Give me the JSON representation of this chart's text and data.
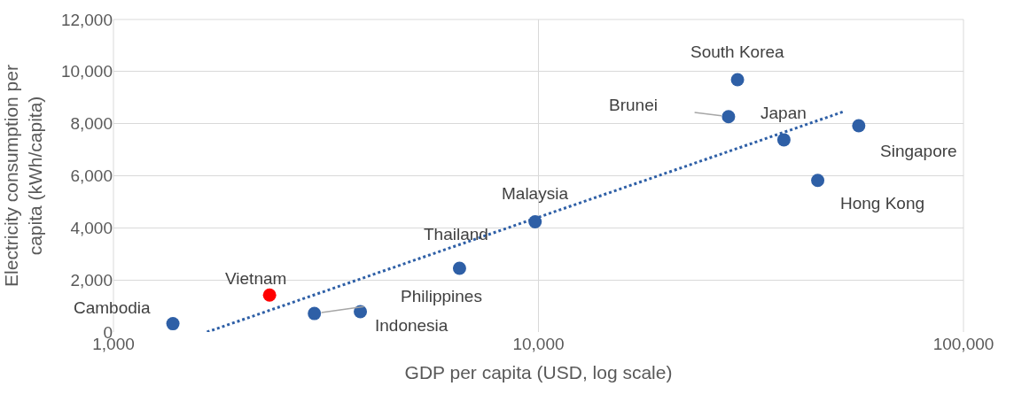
{
  "chart_data": {
    "type": "scatter",
    "xlabel": "GDP per capita (USD, log scale)",
    "ylabel": "Electricity consumption per capita (kWh/capita)",
    "log": "x",
    "grid": true,
    "marker": "circle",
    "xlim": [
      1000,
      100000
    ],
    "xticks": [
      {
        "value": 1000,
        "label": "1,000"
      },
      {
        "value": 10000,
        "label": "10,000"
      },
      {
        "value": 100000,
        "label": "100,000"
      }
    ],
    "ylim": [
      0,
      12000
    ],
    "yticks": [
      0,
      {
        "value": 2000,
        "label": "2,000"
      },
      {
        "value": 4000,
        "label": "4,000"
      },
      {
        "value": 6000,
        "label": "6,000"
      },
      {
        "value": 8000,
        "label": "8,000"
      },
      {
        "value": 10000,
        "label": "10,000"
      },
      {
        "value": 12000,
        "label": "12,000"
      }
    ],
    "series": [
      {
        "x": [
          1380,
          2330,
          2970,
          3810,
          6520,
          9820,
          28000,
          29400,
          37800,
          45400,
          56700
        ],
        "values": [
          320,
          1420,
          710,
          780,
          2450,
          4230,
          8270,
          9690,
          7380,
          5820,
          7920
        ],
        "colors": [
          "#2e5fa6",
          "#ff0000",
          "#2e5fa6",
          "#2e5fa6",
          "#2e5fa6",
          "#2e5fa6",
          "#2e5fa6",
          "#2e5fa6",
          "#2e5fa6",
          "#2e5fa6",
          "#2e5fa6"
        ]
      },
      {
        "type": "line",
        "x": [
          1660,
          52600
        ],
        "values": [
          0,
          8480
        ],
        "color": "#2e5fa6",
        "line_style": "dotted",
        "marker": "none"
      }
    ],
    "annotations": [
      {
        "text": "Cambodia",
        "x": 1380,
        "y": 320
      },
      {
        "text": "Vietnam",
        "x": 2330,
        "y": 1420
      },
      {
        "text": "Philippines",
        "x": 2970,
        "y": 710
      },
      {
        "text": "Indonesia",
        "x": 3810,
        "y": 780
      },
      {
        "text": "Thailand",
        "x": 6520,
        "y": 2450
      },
      {
        "text": "Malaysia",
        "x": 9820,
        "y": 4230
      },
      {
        "text": "Brunei",
        "x": 28000,
        "y": 8270
      },
      {
        "text": "South Korea",
        "x": 29400,
        "y": 9690
      },
      {
        "text": "Japan",
        "x": 37800,
        "y": 7380
      },
      {
        "text": "Hong Kong",
        "x": 45400,
        "y": 5820
      },
      {
        "text": "Singapore",
        "x": 56700,
        "y": 7920
      }
    ]
  }
}
